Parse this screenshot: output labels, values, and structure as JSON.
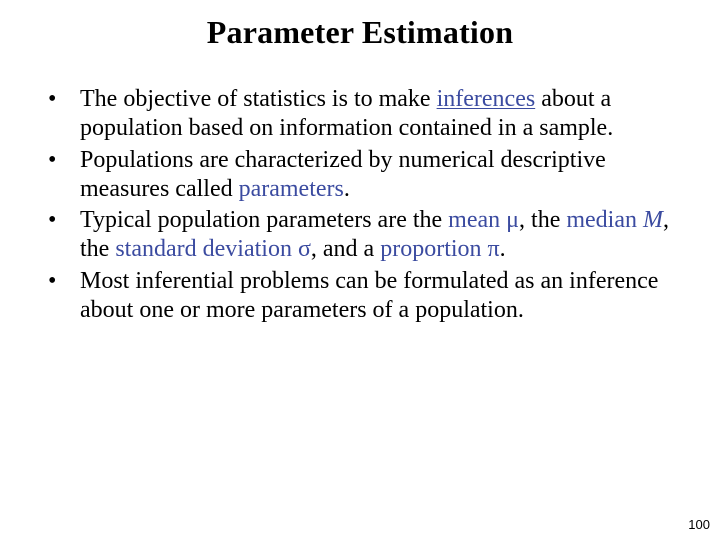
{
  "slide": {
    "title": "Parameter Estimation",
    "page_number": "100",
    "background_color": "#ffffff",
    "text_color": "#000000",
    "keyword_color": "#3b4ba0",
    "title_fontsize": 32,
    "body_fontsize": 24,
    "font_family": "Times New Roman",
    "bullets": [
      {
        "pre1": "The objective of statistics is to make ",
        "kw1": "inferences",
        "kw1_underline": true,
        "post1": " about a population based on information contained in a sample."
      },
      {
        "pre1": "Populations are characterized by numerical descriptive measures called ",
        "kw1": "parameters",
        "post1": "."
      },
      {
        "pre1": "Typical population parameters are the ",
        "kw1": "mean",
        "sym1": " μ",
        "mid1": ", the ",
        "kw2": "median",
        "sym2": " M",
        "mid2": ", the ",
        "kw3": "standard deviation",
        "sym3": " σ",
        "mid3": ", and a ",
        "kw4": "proportion",
        "sym4": " π",
        "post1": "."
      },
      {
        "pre1": "Most inferential problems can be formulated as an inference about one or more parameters of a population."
      }
    ]
  }
}
